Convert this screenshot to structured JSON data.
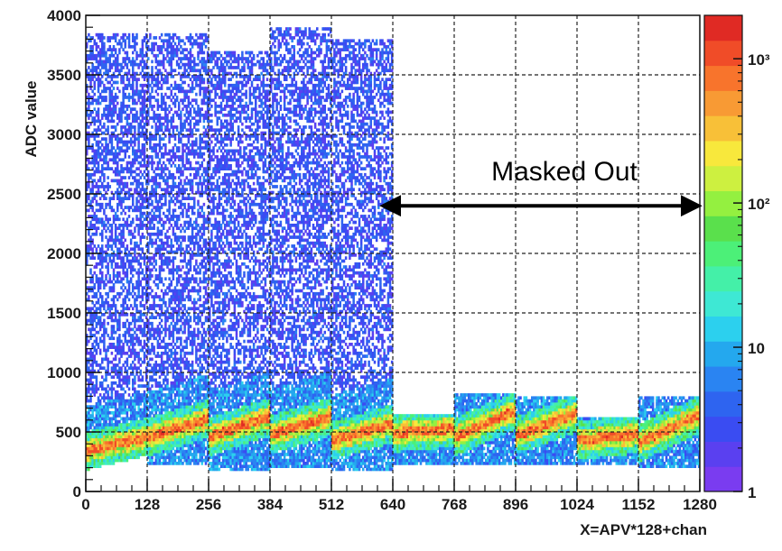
{
  "chart_data": {
    "type": "heatmap",
    "title": "",
    "xlabel": "X=APV*128+chan",
    "ylabel": "ADC value",
    "xlim": [
      0,
      1280
    ],
    "ylim": [
      0,
      4000
    ],
    "x_ticks": [
      "0",
      "128",
      "256",
      "384",
      "512",
      "640",
      "768",
      "896",
      "1024",
      "1152",
      "1280"
    ],
    "y_ticks": [
      "0",
      "500",
      "1000",
      "1500",
      "2000",
      "2500",
      "3000",
      "3500",
      "4000"
    ],
    "grid": true,
    "z_scale": "log",
    "z_range": [
      1,
      2000
    ],
    "colorbar_ticks": [
      {
        "value": 1,
        "label": "1"
      },
      {
        "value": 10,
        "label": "10"
      },
      {
        "value": 100,
        "label": "10²"
      },
      {
        "value": 1000,
        "label": "10³"
      }
    ],
    "annotation": {
      "text": "Masked Out",
      "arrow_from_x": 640,
      "arrow_to_x": 1280,
      "arrow_y": 2400
    },
    "segments": [
      {
        "x_start": 0,
        "x_end": 128,
        "band_start": 330,
        "band_end": 450,
        "noise_top": 3850,
        "low_edge": 280
      },
      {
        "x_start": 128,
        "x_end": 256,
        "band_start": 450,
        "band_end": 600,
        "noise_top": 3850,
        "low_edge": 200
      },
      {
        "x_start": 256,
        "x_end": 384,
        "band_start": 450,
        "band_end": 620,
        "noise_top": 3700,
        "low_edge": 160
      },
      {
        "x_start": 384,
        "x_end": 512,
        "band_start": 470,
        "band_end": 620,
        "noise_top": 3900,
        "low_edge": 180
      },
      {
        "x_start": 512,
        "x_end": 640,
        "band_start": 420,
        "band_end": 560,
        "noise_top": 3800,
        "low_edge": 150
      },
      {
        "x_start": 640,
        "x_end": 768,
        "band_start": 480,
        "band_end": 520,
        "noise_top": 650,
        "low_edge": 200
      },
      {
        "x_start": 768,
        "x_end": 896,
        "band_start": 450,
        "band_end": 670,
        "noise_top": 820,
        "low_edge": 200
      },
      {
        "x_start": 896,
        "x_end": 1024,
        "band_start": 460,
        "band_end": 650,
        "noise_top": 780,
        "low_edge": 200
      },
      {
        "x_start": 1024,
        "x_end": 1152,
        "band_start": 420,
        "band_end": 470,
        "noise_top": 620,
        "low_edge": 200
      },
      {
        "x_start": 1152,
        "x_end": 1280,
        "band_start": 400,
        "band_end": 640,
        "noise_top": 800,
        "low_edge": 180
      }
    ]
  }
}
